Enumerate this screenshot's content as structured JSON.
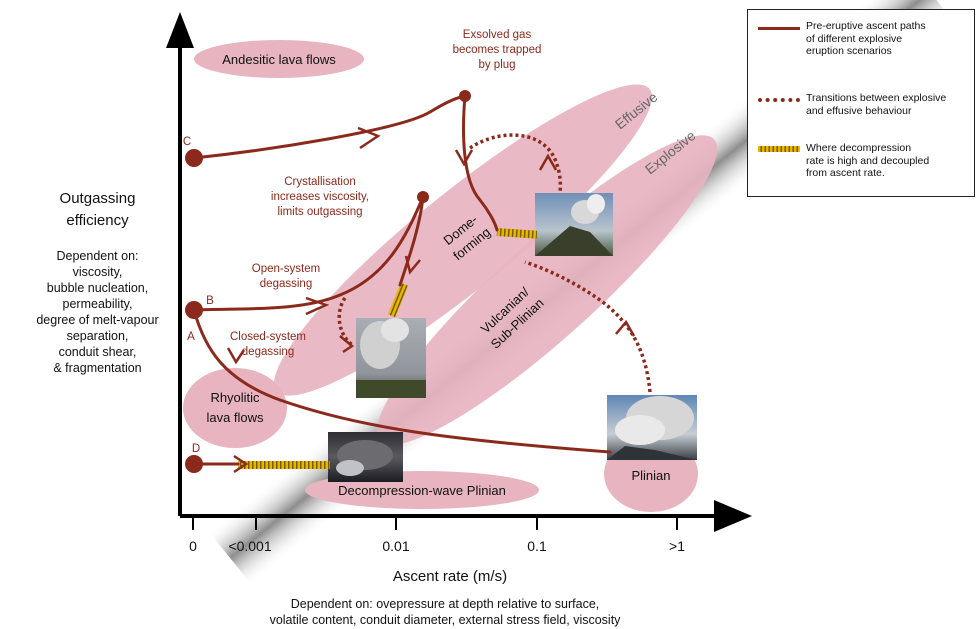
{
  "axes": {
    "y_title_line1": "Outgassing",
    "y_title_line2": "efficiency",
    "y_dependencies": [
      "Dependent on:",
      "viscosity,",
      "bubble nucleation,",
      "permeability,",
      "degree of melt-vapour",
      "separation,",
      "conduit shear,",
      "& fragmentation"
    ],
    "x_title": "Ascent rate (m/s)",
    "x_dependencies": [
      "Dependent on: ovepressure at depth relative to surface,",
      "volatile content, conduit diameter, external stress field, viscosity"
    ],
    "x_ticks": [
      "0",
      "<0.001",
      "0.01",
      "0.1",
      ">1"
    ]
  },
  "regions": {
    "andesitic": "Andesitic lava flows",
    "rhyolitic_1": "Rhyolitic",
    "rhyolitic_2": "lava flows",
    "dome_1": "Dome-",
    "dome_2": "forming",
    "vulcanian_1": "Vulcanian/",
    "vulcanian_2": "Sub-Plinian",
    "decompression": "Decompression-wave Plinian",
    "plinian": "Plinian",
    "effusive": "Effusive",
    "explosive": "Explosive"
  },
  "annotations": {
    "gas_1": "Exsolved gas",
    "gas_2": "becomes trapped",
    "gas_3": "by plug",
    "cryst_1": "Crystallisation",
    "cryst_2": "increases viscosity,",
    "cryst_3": "limits outgassing",
    "open_1": "Open-system",
    "open_2": "degassing",
    "closed_1": "Closed-system",
    "closed_2": "degassing",
    "path_a": "A",
    "path_b": "B",
    "path_c": "C",
    "path_d": "D"
  },
  "legend": {
    "item1": [
      "Pre-eruptive ascent paths",
      "of different explosive",
      "eruption scenarios"
    ],
    "item2": [
      "Transitions between explosive",
      "and effusive behaviour"
    ],
    "item3": [
      "Where decompression",
      "rate is high and decoupled",
      "from ascent rate."
    ]
  },
  "colors": {
    "path": "#8b2a1c",
    "region": "#e7b4c0",
    "band": "#9a9a9a",
    "highlight": "#e6b800"
  }
}
